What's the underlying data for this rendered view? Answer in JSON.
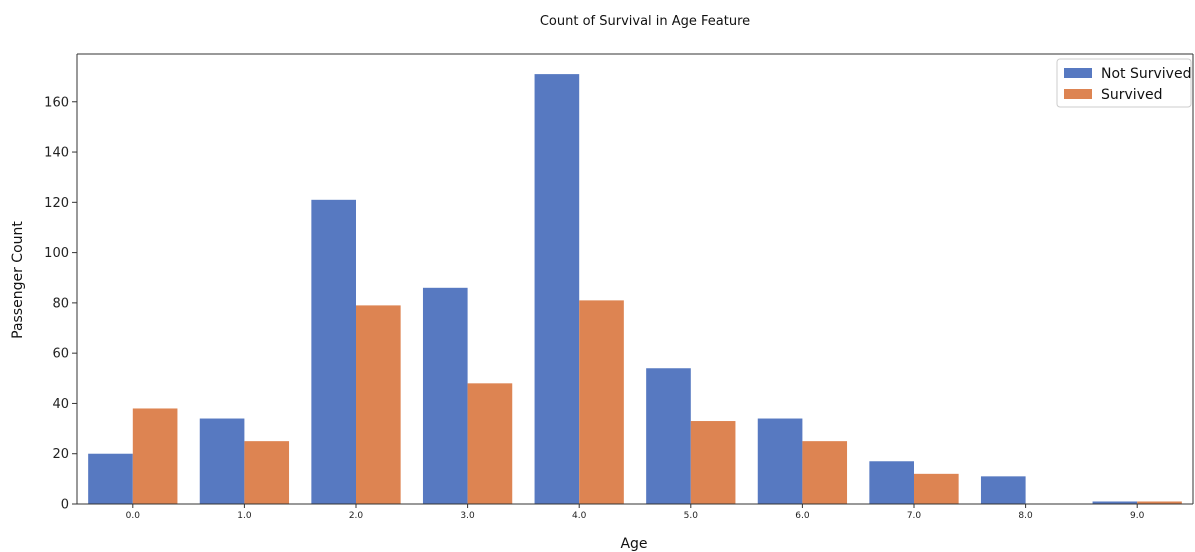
{
  "chart_data": {
    "type": "bar",
    "title": "Count of Survival in Age Feature",
    "xlabel": "Age",
    "ylabel": "Passenger Count",
    "categories": [
      "0.0",
      "1.0",
      "2.0",
      "3.0",
      "4.0",
      "5.0",
      "6.0",
      "7.0",
      "8.0",
      "9.0"
    ],
    "series": [
      {
        "name": "Not Survived",
        "color": "#5779C1",
        "values": [
          20,
          34,
          121,
          86,
          171,
          54,
          34,
          17,
          11,
          1
        ]
      },
      {
        "name": "Survived",
        "color": "#DD8452",
        "values": [
          38,
          25,
          79,
          48,
          81,
          33,
          25,
          12,
          0,
          1
        ]
      }
    ],
    "yticks": [
      0,
      20,
      40,
      60,
      80,
      100,
      120,
      140,
      160
    ],
    "ylim": [
      0,
      179
    ],
    "grid": false,
    "legend_position": "top-right"
  }
}
